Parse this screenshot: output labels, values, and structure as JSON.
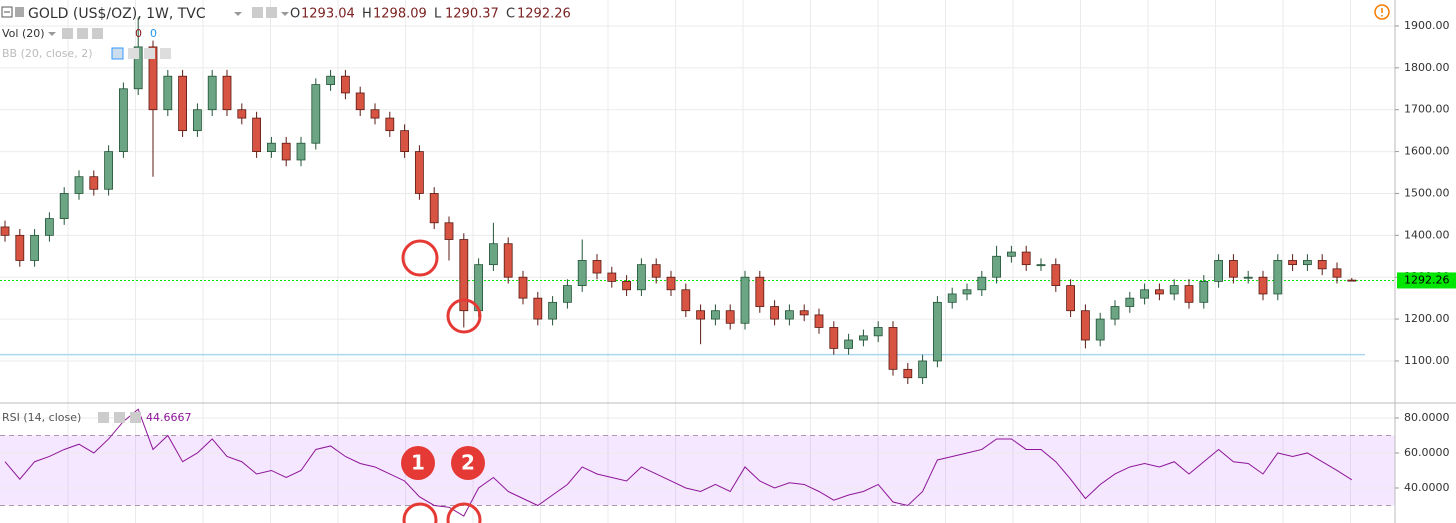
{
  "chart_data": {
    "type": "candlestick",
    "title": "GOLD (US$/OZ), 1W, TVC",
    "ohlc_labels": [
      "O",
      "H",
      "L",
      "C"
    ],
    "open": [
      1420,
      1400,
      1340,
      1400,
      1440,
      1500,
      1540,
      1510,
      1600,
      1750,
      1850,
      1700,
      1780,
      1650,
      1700,
      1780,
      1700,
      1680,
      1600,
      1620,
      1580,
      1620,
      1760,
      1780,
      1740,
      1700,
      1680,
      1650,
      1600,
      1500,
      1430,
      1390,
      1220,
      1330,
      1380,
      1300,
      1250,
      1200,
      1240,
      1280,
      1340,
      1310,
      1290,
      1270,
      1330,
      1300,
      1270,
      1220,
      1200,
      1220,
      1190,
      1300,
      1230,
      1200,
      1220,
      1210,
      1180,
      1130,
      1150,
      1160,
      1180,
      1080,
      1060,
      1100,
      1240,
      1260,
      1270,
      1300,
      1350,
      1360,
      1330,
      1330,
      1280,
      1220,
      1150,
      1200,
      1230,
      1250,
      1270,
      1260,
      1280,
      1240,
      1290,
      1340,
      1300,
      1300,
      1260,
      1340,
      1330,
      1340,
      1320,
      1293.04
    ],
    "high": [
      1435,
      1415,
      1415,
      1455,
      1515,
      1555,
      1555,
      1615,
      1765,
      1920,
      1865,
      1795,
      1795,
      1715,
      1795,
      1795,
      1715,
      1695,
      1635,
      1635,
      1635,
      1775,
      1795,
      1795,
      1755,
      1715,
      1695,
      1665,
      1615,
      1515,
      1445,
      1405,
      1345,
      1430,
      1395,
      1315,
      1265,
      1255,
      1295,
      1390,
      1355,
      1325,
      1305,
      1345,
      1345,
      1315,
      1285,
      1235,
      1235,
      1235,
      1315,
      1315,
      1245,
      1235,
      1235,
      1225,
      1195,
      1165,
      1175,
      1195,
      1195,
      1095,
      1115,
      1255,
      1275,
      1285,
      1315,
      1375,
      1375,
      1375,
      1345,
      1345,
      1295,
      1235,
      1215,
      1245,
      1265,
      1285,
      1285,
      1295,
      1295,
      1305,
      1355,
      1355,
      1315,
      1315,
      1355,
      1355,
      1355,
      1355,
      1335,
      1298.09
    ],
    "low": [
      1385,
      1325,
      1325,
      1385,
      1425,
      1485,
      1495,
      1495,
      1585,
      1735,
      1540,
      1685,
      1635,
      1635,
      1685,
      1685,
      1665,
      1585,
      1585,
      1565,
      1565,
      1605,
      1745,
      1725,
      1685,
      1665,
      1635,
      1585,
      1485,
      1415,
      1340,
      1180,
      1205,
      1315,
      1285,
      1235,
      1185,
      1185,
      1225,
      1265,
      1295,
      1275,
      1255,
      1255,
      1285,
      1255,
      1205,
      1140,
      1185,
      1175,
      1175,
      1215,
      1185,
      1185,
      1195,
      1165,
      1115,
      1115,
      1135,
      1145,
      1065,
      1045,
      1045,
      1085,
      1225,
      1245,
      1255,
      1285,
      1335,
      1315,
      1315,
      1265,
      1205,
      1130,
      1135,
      1185,
      1215,
      1235,
      1245,
      1245,
      1225,
      1225,
      1275,
      1285,
      1285,
      1245,
      1245,
      1315,
      1315,
      1305,
      1285,
      1290.37
    ],
    "close": [
      1400,
      1340,
      1400,
      1440,
      1500,
      1540,
      1510,
      1600,
      1750,
      1850,
      1700,
      1780,
      1650,
      1700,
      1780,
      1700,
      1680,
      1600,
      1620,
      1580,
      1620,
      1760,
      1780,
      1740,
      1700,
      1680,
      1650,
      1600,
      1500,
      1430,
      1390,
      1220,
      1330,
      1380,
      1300,
      1250,
      1200,
      1240,
      1280,
      1340,
      1310,
      1290,
      1270,
      1330,
      1300,
      1270,
      1220,
      1200,
      1220,
      1190,
      1300,
      1230,
      1200,
      1220,
      1210,
      1180,
      1130,
      1150,
      1160,
      1180,
      1080,
      1060,
      1100,
      1240,
      1260,
      1270,
      1300,
      1350,
      1360,
      1330,
      1330,
      1280,
      1220,
      1150,
      1200,
      1230,
      1250,
      1270,
      1260,
      1280,
      1240,
      1290,
      1340,
      1300,
      1300,
      1260,
      1340,
      1330,
      1340,
      1320,
      1300,
      1292.26
    ],
    "up_color": "#6ba583",
    "down_color": "#d75442",
    "ylim": [
      1002,
      1962
    ],
    "yticks": [
      {
        "value": 1100,
        "label": "1100.00"
      },
      {
        "value": 1200,
        "label": "1200.00"
      },
      {
        "value": 1300,
        "label": "1300.00"
      },
      {
        "value": 1400,
        "label": "1400.00"
      },
      {
        "value": 1500,
        "label": "1500.00"
      },
      {
        "value": 1600,
        "label": "1600.00"
      },
      {
        "value": 1700,
        "label": "1700.00"
      },
      {
        "value": 1800,
        "label": "1800.00"
      },
      {
        "value": 1900,
        "label": "1900.00"
      }
    ],
    "grid": true,
    "last_price_color": "#00e600",
    "support_line": 1115,
    "support_color": "#a8d8f0",
    "indicators": {
      "volume": {
        "label": "Vol (20)",
        "values": [
          0,
          0
        ]
      },
      "bb": {
        "label": "BB (20, close, 2)"
      }
    },
    "rsi": {
      "label": "RSI (14, close)",
      "values": [
        55,
        45,
        55,
        58,
        62,
        65,
        60,
        68,
        78,
        85,
        62,
        70,
        55,
        60,
        68,
        58,
        55,
        48,
        50,
        46,
        50,
        62,
        64,
        58,
        54,
        52,
        48,
        44,
        35,
        30,
        29,
        24,
        40,
        46,
        38,
        34,
        30,
        36,
        42,
        52,
        48,
        46,
        44,
        52,
        48,
        44,
        40,
        38,
        42,
        38,
        52,
        44,
        40,
        43,
        42,
        38,
        33,
        36,
        38,
        42,
        32,
        30,
        38,
        56,
        58,
        60,
        62,
        68,
        68,
        62,
        62,
        55,
        45,
        34,
        42,
        48,
        52,
        54,
        52,
        55,
        48,
        55,
        62,
        55,
        54,
        48,
        60,
        58,
        60,
        55,
        50,
        44.6667
      ],
      "color": "#8e1599",
      "ylim": [
        20,
        87.4
      ],
      "yticks": [
        {
          "value": 40,
          "label": "40.0000"
        },
        {
          "value": 60,
          "label": "60.0000"
        },
        {
          "value": 80,
          "label": "80.0000"
        }
      ],
      "band": [
        30,
        70
      ]
    },
    "markers": [
      "1",
      "2"
    ]
  }
}
